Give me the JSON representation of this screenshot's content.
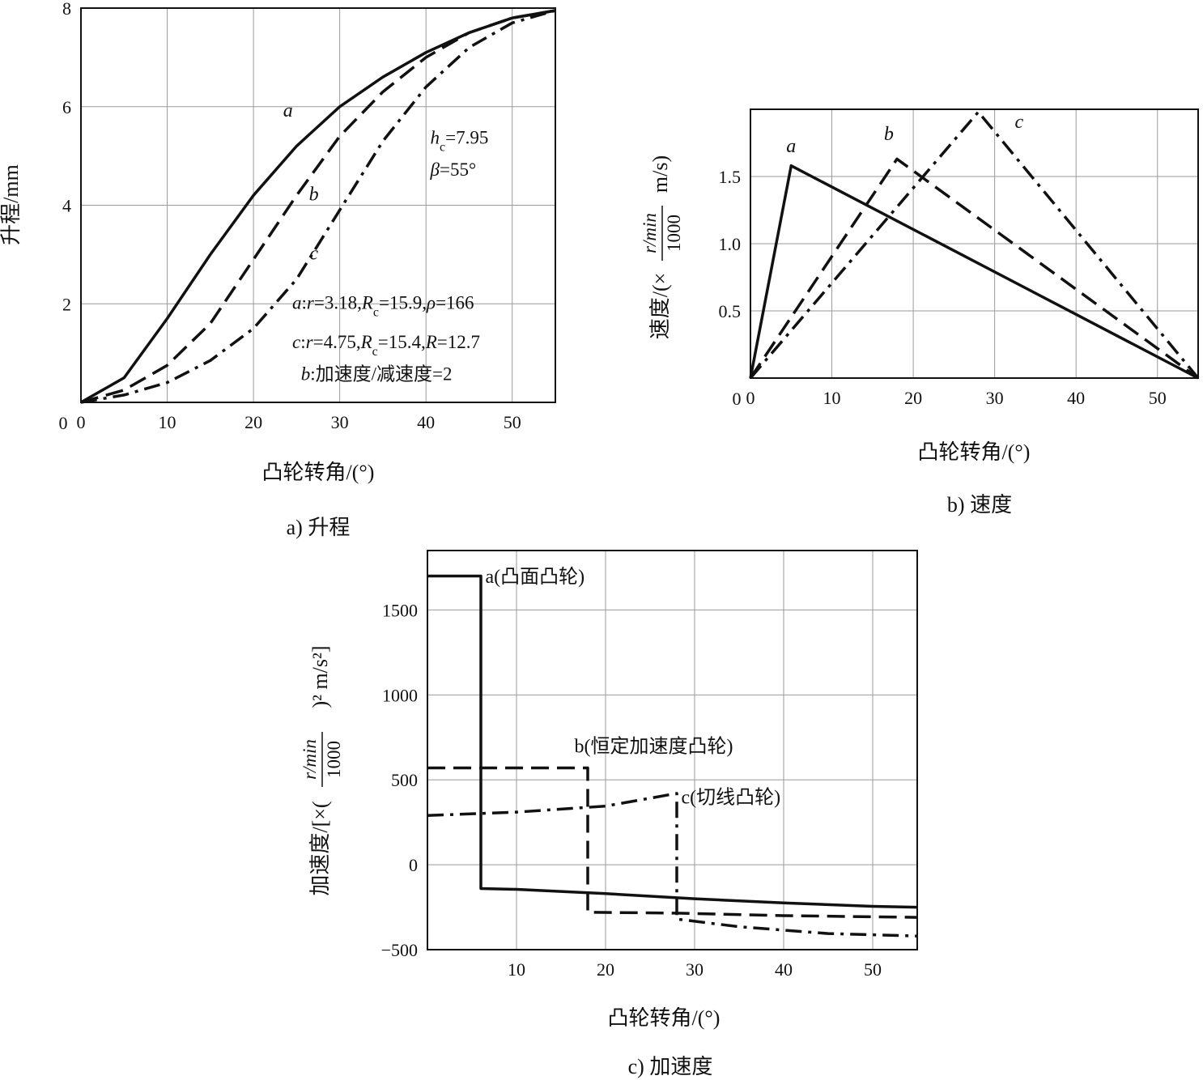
{
  "chart_data": [
    {
      "id": "lift",
      "type": "line",
      "caption": "a) 升程",
      "xlabel": "凸轮转角/(°)",
      "ylabel": "升程/mm",
      "xlim": [
        0,
        55
      ],
      "ylim": [
        0,
        8
      ],
      "xticks": [
        "0",
        "10",
        "20",
        "30",
        "40",
        "50"
      ],
      "yticks": [
        "2",
        "4",
        "6",
        "8"
      ],
      "grid": true,
      "series": [
        {
          "name": "a",
          "style": "solid",
          "points": [
            [
              0,
              0
            ],
            [
              5,
              0.5
            ],
            [
              10,
              1.7
            ],
            [
              15,
              3.0
            ],
            [
              20,
              4.2
            ],
            [
              25,
              5.2
            ],
            [
              30,
              6.0
            ],
            [
              35,
              6.6
            ],
            [
              40,
              7.1
            ],
            [
              45,
              7.5
            ],
            [
              50,
              7.8
            ],
            [
              55,
              7.95
            ]
          ]
        },
        {
          "name": "b",
          "style": "dash",
          "points": [
            [
              0,
              0
            ],
            [
              5,
              0.25
            ],
            [
              10,
              0.75
            ],
            [
              15,
              1.6
            ],
            [
              20,
              2.9
            ],
            [
              25,
              4.2
            ],
            [
              30,
              5.4
            ],
            [
              35,
              6.3
            ],
            [
              40,
              7.0
            ],
            [
              45,
              7.5
            ],
            [
              50,
              7.8
            ],
            [
              55,
              7.95
            ]
          ]
        },
        {
          "name": "c",
          "style": "dashdot",
          "points": [
            [
              0,
              0
            ],
            [
              5,
              0.15
            ],
            [
              10,
              0.4
            ],
            [
              15,
              0.85
            ],
            [
              20,
              1.5
            ],
            [
              25,
              2.5
            ],
            [
              30,
              3.9
            ],
            [
              35,
              5.3
            ],
            [
              40,
              6.4
            ],
            [
              45,
              7.2
            ],
            [
              50,
              7.7
            ],
            [
              55,
              7.95
            ]
          ]
        }
      ],
      "curve_labels": [
        {
          "text": "a",
          "x": 24,
          "y": 5.8
        },
        {
          "text": "b",
          "x": 27,
          "y": 4.1
        },
        {
          "text": "c",
          "x": 27,
          "y": 2.9
        }
      ],
      "annotations": [
        {
          "text": "hc=7.95",
          "x": 40.5,
          "y": 5.25
        },
        {
          "text": "β=55°",
          "x": 40.5,
          "y": 4.6
        },
        {
          "text": "a:r=3.18,Rc=15.9,ρ=166",
          "x": 24.5,
          "y": 1.9
        },
        {
          "text": "c:r=4.75,Rc=15.4,R=12.7",
          "x": 24.5,
          "y": 1.1
        },
        {
          "text": "b:加速度/减速度=2",
          "x": 25.5,
          "y": 0.45
        }
      ]
    },
    {
      "id": "velocity",
      "type": "line",
      "caption": "b) 速度",
      "xlabel": "凸轮转角/(°)",
      "ylabel": "速度/(× r/min/1000 m/s)",
      "xlim": [
        0,
        55
      ],
      "ylim": [
        0,
        2.0
      ],
      "xticks": [
        "0",
        "10",
        "20",
        "30",
        "40",
        "50"
      ],
      "yticks": [
        "0.5",
        "1.0",
        "1.5"
      ],
      "grid": true,
      "series": [
        {
          "name": "a",
          "style": "solid",
          "points": [
            [
              0,
              0
            ],
            [
              5,
              1.58
            ],
            [
              55,
              0
            ]
          ]
        },
        {
          "name": "b",
          "style": "dash",
          "points": [
            [
              0,
              0
            ],
            [
              18,
              1.63
            ],
            [
              55,
              0
            ]
          ]
        },
        {
          "name": "c",
          "style": "dashdot",
          "points": [
            [
              0,
              0
            ],
            [
              28,
              1.98
            ],
            [
              55,
              0
            ]
          ]
        }
      ],
      "curve_labels": [
        {
          "text": "a",
          "x": 5,
          "y": 1.68
        },
        {
          "text": "b",
          "x": 17,
          "y": 1.77
        },
        {
          "text": "c",
          "x": 33,
          "y": 1.86
        }
      ]
    },
    {
      "id": "acceleration",
      "type": "line",
      "caption": "c) 加速度",
      "xlabel": "凸轮转角/(°)",
      "ylabel": "加速度/[×(r/min/1000)² m/s²]",
      "xlim": [
        0,
        55
      ],
      "ylim": [
        -500,
        1850
      ],
      "xticks": [
        "10",
        "20",
        "30",
        "40",
        "50"
      ],
      "yticks": [
        "-500",
        "0",
        "500",
        "1000",
        "1500"
      ],
      "grid": true,
      "series": [
        {
          "name": "a(凸面凸轮)",
          "style": "solid",
          "points": [
            [
              0,
              1700
            ],
            [
              6,
              1700
            ],
            [
              6,
              -140
            ],
            [
              10,
              -145
            ],
            [
              20,
              -170
            ],
            [
              30,
              -200
            ],
            [
              40,
              -225
            ],
            [
              50,
              -245
            ],
            [
              55,
              -250
            ]
          ]
        },
        {
          "name": "b(恒定加速度凸轮)",
          "style": "dash",
          "points": [
            [
              0,
              570
            ],
            [
              18,
              570
            ],
            [
              18,
              -280
            ],
            [
              28,
              -285
            ],
            [
              40,
              -300
            ],
            [
              55,
              -310
            ]
          ]
        },
        {
          "name": "c(切线凸轮)",
          "style": "dashdot",
          "points": [
            [
              0,
              290
            ],
            [
              10,
              310
            ],
            [
              20,
              345
            ],
            [
              28,
              420
            ],
            [
              28,
              -320
            ],
            [
              35,
              -365
            ],
            [
              45,
              -405
            ],
            [
              55,
              -420
            ]
          ]
        }
      ],
      "series_labels": [
        {
          "text": "a(凸面凸轮)",
          "x": 6.5,
          "y": 1660
        },
        {
          "text": "b(恒定加速度凸轮)",
          "x": 16.5,
          "y": 660
        },
        {
          "text": "c(切线凸轮)",
          "x": 28.5,
          "y": 360
        }
      ]
    }
  ]
}
